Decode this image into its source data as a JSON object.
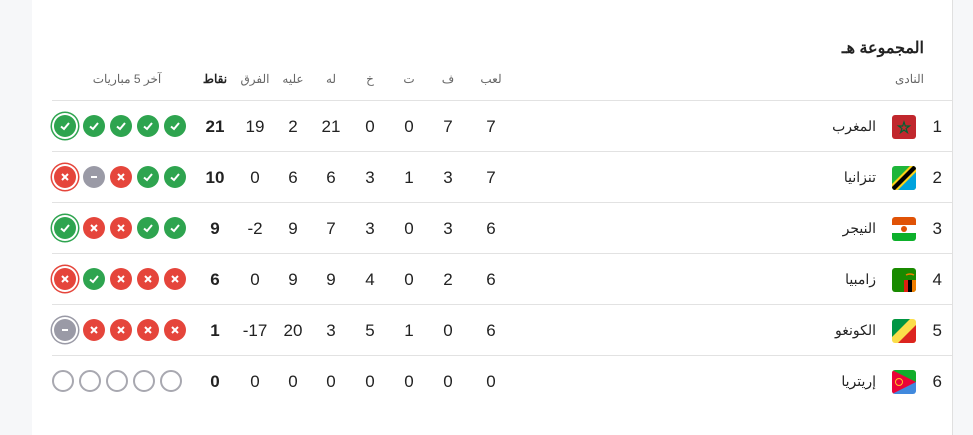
{
  "title": "المجموعة هـ",
  "headers": {
    "club": "النادى",
    "played": "لعب",
    "won": "ف",
    "drawn": "ت",
    "lost": "خ",
    "for": "له",
    "against": "عليه",
    "diff": "الفرق",
    "points": "نقاط",
    "last5": "آخر 5 مباريات"
  },
  "colors": {
    "win": "#2ea44f",
    "loss": "#e5453b",
    "draw": "#9a9aa6"
  },
  "rows": [
    {
      "rank": "1",
      "name": "المغرب",
      "flag": "morocco",
      "played": "7",
      "won": "7",
      "drawn": "0",
      "lost": "0",
      "for": "21",
      "against": "2",
      "diff": "19",
      "points": "21",
      "form": [
        "W",
        "W",
        "W",
        "W",
        "W"
      ]
    },
    {
      "rank": "2",
      "name": "تنزانيا",
      "flag": "tanzania",
      "played": "7",
      "won": "3",
      "drawn": "1",
      "lost": "3",
      "for": "6",
      "against": "6",
      "diff": "0",
      "points": "10",
      "form": [
        "L",
        "D",
        "L",
        "W",
        "W"
      ]
    },
    {
      "rank": "3",
      "name": "النيجر",
      "flag": "niger",
      "played": "6",
      "won": "3",
      "drawn": "0",
      "lost": "3",
      "for": "7",
      "against": "9",
      "diff": "-2",
      "points": "9",
      "form": [
        "W",
        "L",
        "L",
        "W",
        "W"
      ]
    },
    {
      "rank": "4",
      "name": "زامبيا",
      "flag": "zambia",
      "played": "6",
      "won": "2",
      "drawn": "0",
      "lost": "4",
      "for": "9",
      "against": "9",
      "diff": "0",
      "points": "6",
      "form": [
        "L",
        "W",
        "L",
        "L",
        "L"
      ]
    },
    {
      "rank": "5",
      "name": "الكونغو",
      "flag": "congo",
      "played": "6",
      "won": "0",
      "drawn": "1",
      "lost": "5",
      "for": "3",
      "against": "20",
      "diff": "-17",
      "points": "1",
      "form": [
        "D",
        "L",
        "L",
        "L",
        "L"
      ]
    },
    {
      "rank": "6",
      "name": "إريتريا",
      "flag": "eritrea",
      "played": "0",
      "won": "0",
      "drawn": "0",
      "lost": "0",
      "for": "0",
      "against": "0",
      "diff": "0",
      "points": "0",
      "form": [
        "E",
        "E",
        "E",
        "E",
        "E"
      ]
    }
  ]
}
